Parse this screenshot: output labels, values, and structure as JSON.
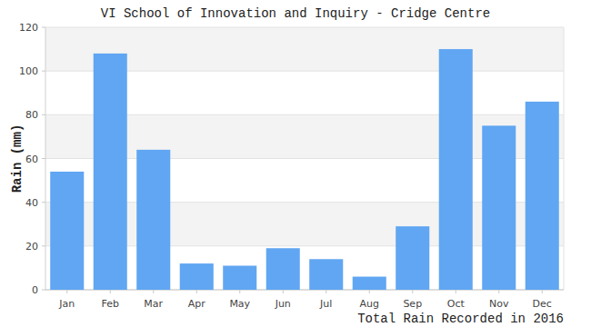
{
  "chart_data": {
    "type": "bar",
    "title": "VI School of Innovation and Inquiry - Cridge Centre",
    "xlabel": "Total Rain Recorded in 2016",
    "ylabel": "Rain (mm)",
    "categories": [
      "Jan",
      "Feb",
      "Mar",
      "Apr",
      "May",
      "Jun",
      "Jul",
      "Aug",
      "Sep",
      "Oct",
      "Nov",
      "Dec"
    ],
    "values": [
      54,
      108,
      64,
      12,
      11,
      19,
      14,
      6,
      29,
      110,
      75,
      86
    ],
    "color": "#60a6f2",
    "ylim": [
      0,
      120
    ],
    "yticks": [
      0,
      20,
      40,
      60,
      80,
      100,
      120
    ],
    "grid": true
  }
}
